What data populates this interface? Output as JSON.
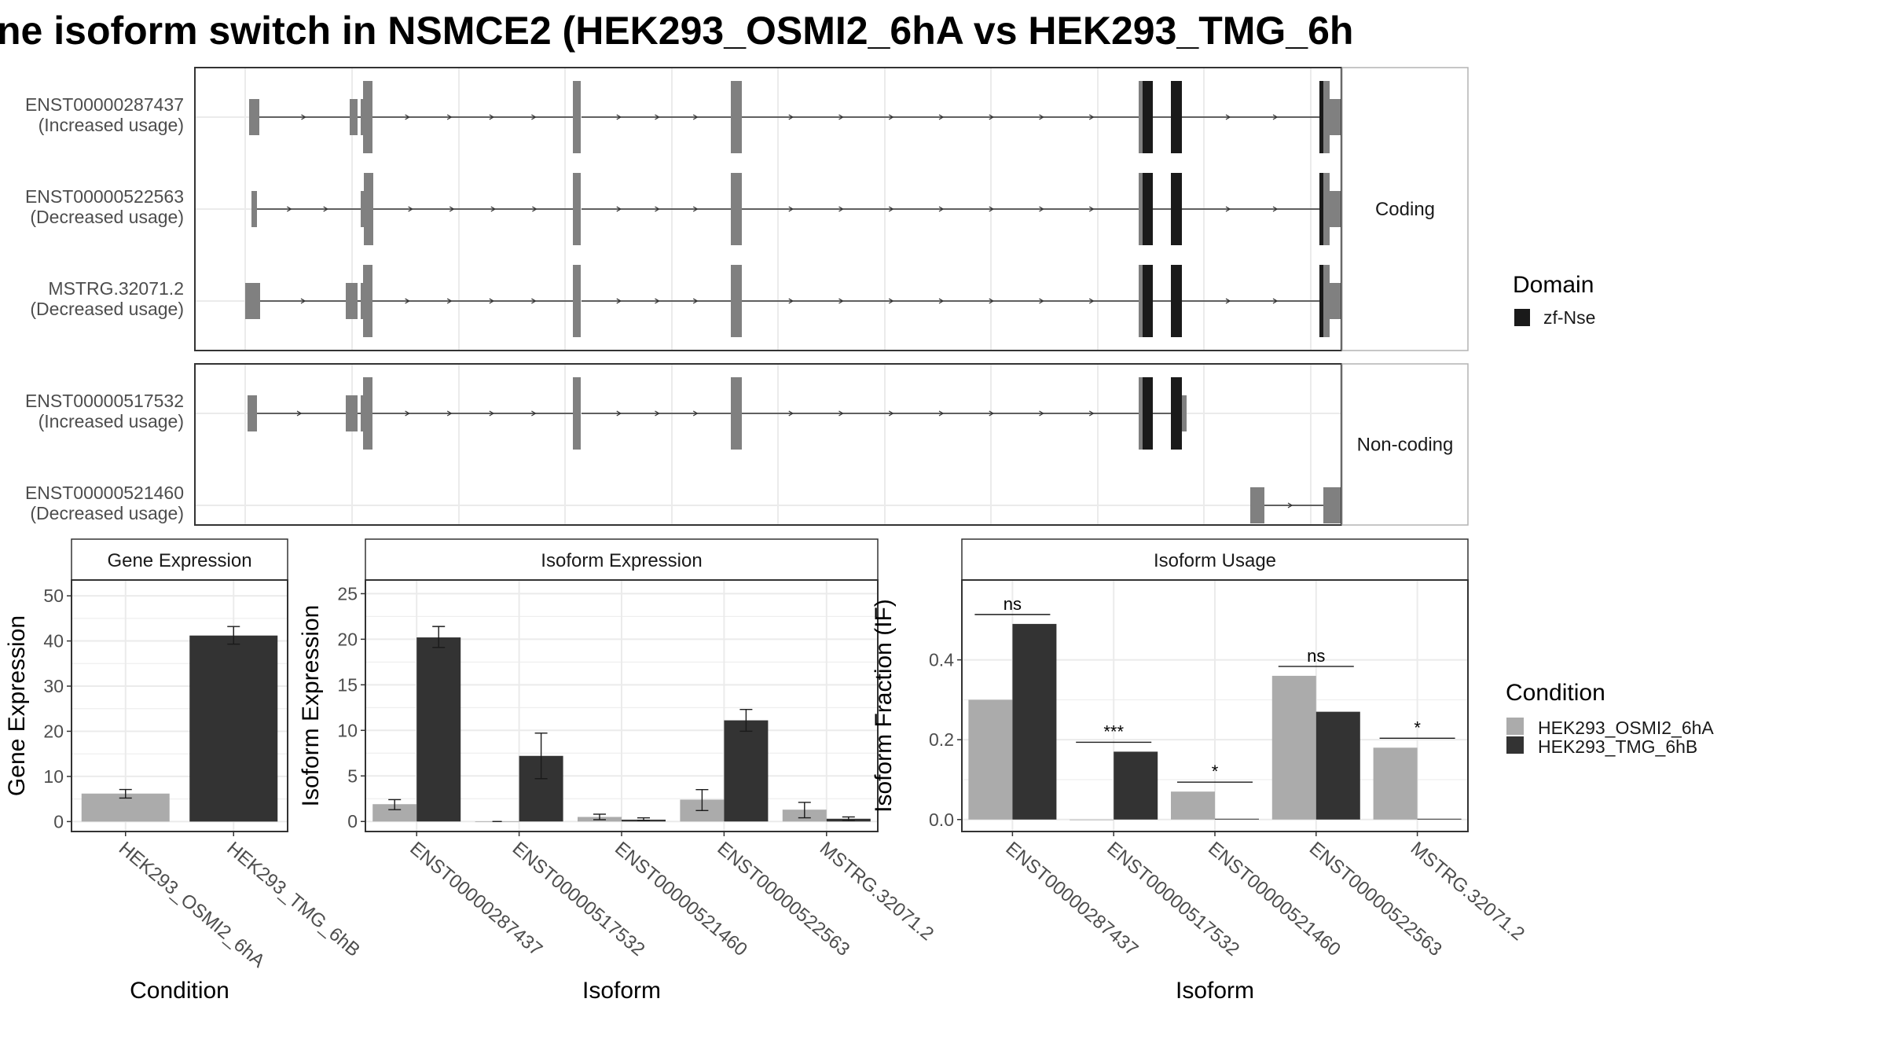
{
  "figure": {
    "title": "ne isoform switch in NSMCE2 (HEK293_OSMI2_6hA vs HEK293_TMG_6h"
  },
  "colors": {
    "cond_a": "#ababab",
    "cond_b": "#333333",
    "exon": "#808080",
    "domain": "#1a1a1a",
    "panel_border": "#333333",
    "strip_border": "#b3b3b3",
    "grid": "#ebebeb",
    "intron": "#333333"
  },
  "chart_data": [
    {
      "type": "transcript-structure",
      "facets": [
        "Coding",
        "Non-coding"
      ],
      "domain_legend": {
        "title": "Domain",
        "entries": [
          "zf-Nse"
        ]
      },
      "transcripts": [
        {
          "id": "ENST00000287437",
          "usage": "(Increased usage)",
          "facet": "Coding",
          "introns": [
            [
              13,
              138
            ],
            [
              138,
              152
            ],
            [
              154,
              422
            ],
            [
              428,
              623
            ],
            [
              632,
              1142
            ],
            [
              1155,
              1178
            ],
            [
              1192,
              1372
            ]
          ],
          "exons": [
            [
              5,
              18,
              "UTR"
            ],
            [
              133,
              143,
              "UTR"
            ],
            [
              147,
              150,
              "UTR"
            ],
            [
              150,
              162,
              "CDS"
            ],
            [
              417,
              427,
              "CDS"
            ],
            [
              618,
              632,
              "CDS"
            ],
            [
              1137,
              1142,
              "CDS"
            ],
            [
              1142,
              1155,
              "DOMAIN"
            ],
            [
              1178,
              1192,
              "DOMAIN"
            ],
            [
              1367,
              1372,
              "DOMAIN"
            ],
            [
              1372,
              1380,
              "CDS"
            ],
            [
              1380,
              1405,
              "UTR"
            ]
          ]
        },
        {
          "id": "ENST00000522563",
          "usage": "(Decreased usage)",
          "facet": "Coding",
          "introns": [
            [
              11,
              150
            ],
            [
              159,
              422
            ],
            [
              428,
              623
            ],
            [
              632,
              1142
            ],
            [
              1155,
              1178
            ],
            [
              1192,
              1372
            ]
          ],
          "exons": [
            [
              8,
              15,
              "UTR"
            ],
            [
              147,
              151,
              "UTR"
            ],
            [
              151,
              163,
              "CDS"
            ],
            [
              417,
              427,
              "CDS"
            ],
            [
              618,
              632,
              "CDS"
            ],
            [
              1137,
              1142,
              "CDS"
            ],
            [
              1142,
              1155,
              "DOMAIN"
            ],
            [
              1178,
              1192,
              "DOMAIN"
            ],
            [
              1367,
              1372,
              "DOMAIN"
            ],
            [
              1372,
              1380,
              "CDS"
            ],
            [
              1380,
              1405,
              "UTR"
            ]
          ]
        },
        {
          "id": "MSTRG.32071.2",
          "usage": "(Decreased usage)",
          "facet": "Coding",
          "introns": [
            [
              19,
              131
            ],
            [
              143,
              152
            ],
            [
              154,
              422
            ],
            [
              428,
              623
            ],
            [
              632,
              1142
            ],
            [
              1155,
              1178
            ],
            [
              1192,
              1372
            ]
          ],
          "exons": [
            [
              0,
              19,
              "UTR"
            ],
            [
              128,
              143,
              "UTR"
            ],
            [
              147,
              150,
              "UTR"
            ],
            [
              150,
              162,
              "CDS"
            ],
            [
              417,
              427,
              "CDS"
            ],
            [
              618,
              632,
              "CDS"
            ],
            [
              1137,
              1142,
              "CDS"
            ],
            [
              1142,
              1155,
              "DOMAIN"
            ],
            [
              1178,
              1192,
              "DOMAIN"
            ],
            [
              1367,
              1372,
              "DOMAIN"
            ],
            [
              1372,
              1380,
              "CDS"
            ],
            [
              1380,
              1405,
              "UTR"
            ]
          ]
        },
        {
          "id": "ENST00000517532",
          "usage": "(Increased usage)",
          "facet": "Non-coding",
          "introns": [
            [
              10,
              130
            ],
            [
              143,
              152
            ],
            [
              154,
              422
            ],
            [
              428,
              623
            ],
            [
              632,
              1142
            ],
            [
              1155,
              1178
            ]
          ],
          "exons": [
            [
              3,
              15,
              "UTR"
            ],
            [
              128,
              143,
              "UTR"
            ],
            [
              147,
              150,
              "UTR"
            ],
            [
              150,
              162,
              "CDS"
            ],
            [
              417,
              427,
              "CDS"
            ],
            [
              618,
              632,
              "CDS"
            ],
            [
              1137,
              1142,
              "CDS"
            ],
            [
              1142,
              1155,
              "DOMAIN"
            ],
            [
              1178,
              1192,
              "DOMAIN"
            ],
            [
              1192,
              1198,
              "UTR"
            ]
          ]
        },
        {
          "id": "ENST00000521460",
          "usage": "(Decreased usage)",
          "facet": "Non-coding",
          "introns": [
            [
              1290,
              1372
            ]
          ],
          "exons": [
            [
              1279,
              1297,
              "UTR"
            ],
            [
              1372,
              1405,
              "UTR"
            ]
          ]
        }
      ]
    },
    {
      "type": "bar",
      "title": "Gene Expression",
      "xlabel": "Condition",
      "ylabel": "Gene Expression",
      "categories": [
        "HEK293_OSMI2_6hA",
        "HEK293_TMG_6hB"
      ],
      "values": [
        6.2,
        41.2
      ],
      "error_low": [
        5.2,
        39.3
      ],
      "error_high": [
        7.1,
        43.2
      ],
      "ylim": [
        -2.2,
        53.5
      ],
      "yticks": [
        0,
        10,
        20,
        30,
        40,
        50
      ]
    },
    {
      "type": "bar",
      "title": "Isoform Expression",
      "xlabel": "Isoform",
      "ylabel": "Isoform Expression",
      "categories": [
        "ENST00000287437",
        "ENST00000517532",
        "ENST00000521460",
        "ENST00000522563",
        "MSTRG.32071.2"
      ],
      "series": [
        {
          "name": "HEK293_OSMI2_6hA",
          "values": [
            1.9,
            0.0,
            0.5,
            2.4,
            1.3
          ],
          "error_low": [
            1.3,
            0.0,
            0.2,
            1.2,
            0.4
          ],
          "error_high": [
            2.4,
            0.0,
            0.8,
            3.5,
            2.1
          ]
        },
        {
          "name": "HEK293_TMG_6hB",
          "values": [
            20.2,
            7.2,
            0.2,
            11.1,
            0.3
          ],
          "error_low": [
            19.1,
            4.7,
            0.1,
            9.9,
            0.1
          ],
          "error_high": [
            21.4,
            9.7,
            0.4,
            12.3,
            0.5
          ]
        }
      ],
      "ylim": [
        -1.1,
        26.5
      ],
      "yticks": [
        0,
        5,
        10,
        15,
        20,
        25
      ]
    },
    {
      "type": "bar",
      "title": "Isoform Usage",
      "xlabel": "Isoform",
      "ylabel": "Isoform Fraction (IF)",
      "categories": [
        "ENST00000287437",
        "ENST00000517532",
        "ENST00000521460",
        "ENST00000522563",
        "MSTRG.32071.2"
      ],
      "series": [
        {
          "name": "HEK293_OSMI2_6hA",
          "values": [
            0.3,
            0.0,
            0.07,
            0.36,
            0.18
          ]
        },
        {
          "name": "HEK293_TMG_6hB",
          "values": [
            0.49,
            0.17,
            0.002,
            0.27,
            0.002
          ]
        }
      ],
      "significance": [
        "ns",
        "***",
        "*",
        "ns",
        "*"
      ],
      "ylim": [
        -0.03,
        0.6
      ],
      "yticks": [
        0.0,
        0.2,
        0.4
      ],
      "ytick_labels": [
        "0.0",
        "0.2",
        "0.4"
      ]
    }
  ],
  "legends": {
    "condition_title": "Condition",
    "conditions": [
      "HEK293_OSMI2_6hA",
      "HEK293_TMG_6hB"
    ]
  }
}
